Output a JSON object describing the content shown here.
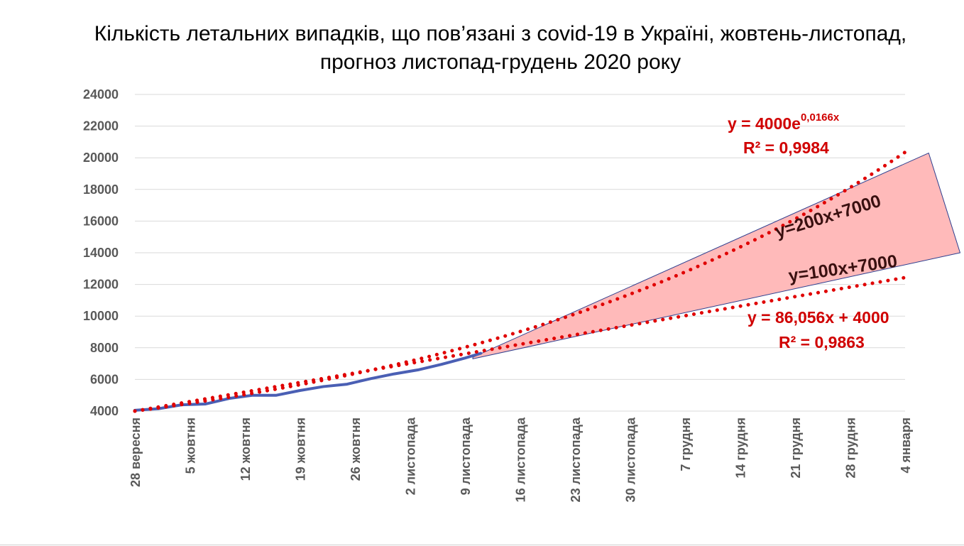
{
  "chart_data": {
    "type": "line",
    "title_line1": "Кількість летальних випадків, що пов’язані з covid-19 в Україні, жовтень-листопад,",
    "title_line2": "прогноз листопад-грудень 2020 року",
    "ylim": [
      4000,
      24000
    ],
    "y_ticks": [
      "4000",
      "6000",
      "8000",
      "10000",
      "12000",
      "14000",
      "16000",
      "18000",
      "20000",
      "22000",
      "24000"
    ],
    "x_tick_labels": [
      "28 вересня",
      "5 жовтня",
      "12 жовтня",
      "19 жовтня",
      "26 жовтня",
      "2 листопада",
      "9 листопада",
      "16 листопада",
      "23 листопада",
      "30 листопада",
      "7 грудня",
      "14 грудня",
      "21 грудня",
      "28 грудня",
      "4 января"
    ],
    "xlim_days": [
      0,
      98
    ],
    "grid": true,
    "legend": "none",
    "series": [
      {
        "kind": "actual",
        "color": "#4a5fb4",
        "x": [
          0,
          3,
          6,
          9,
          12,
          15,
          18,
          21,
          24,
          27,
          30,
          33,
          36,
          39,
          42,
          44
        ],
        "y": [
          4050,
          4150,
          4400,
          4450,
          4800,
          5000,
          5000,
          5300,
          5550,
          5700,
          6050,
          6350,
          6600,
          6950,
          7350,
          7650
        ]
      }
    ],
    "trend_exponential": {
      "equation_text": "y = 4000e",
      "exponent_text": "0,0166x",
      "r2_text": "R² = 0,9984",
      "a": 4000,
      "k": 0.0166,
      "color": "#e00000"
    },
    "trend_linear": {
      "equation_text": "y = 86,056x + 4000",
      "r2_text": "R² = 0,9863",
      "slope": 86.056,
      "intercept": 4000,
      "color": "#e00000"
    },
    "forecast_band": {
      "color": "#ffbaba",
      "upper_label": "y=200x+7000",
      "lower_label": "y=100x+7000",
      "points": [
        [
          43,
          7400
        ],
        [
          101,
          20300
        ],
        [
          105,
          14000
        ],
        [
          43,
          7300
        ]
      ]
    }
  }
}
